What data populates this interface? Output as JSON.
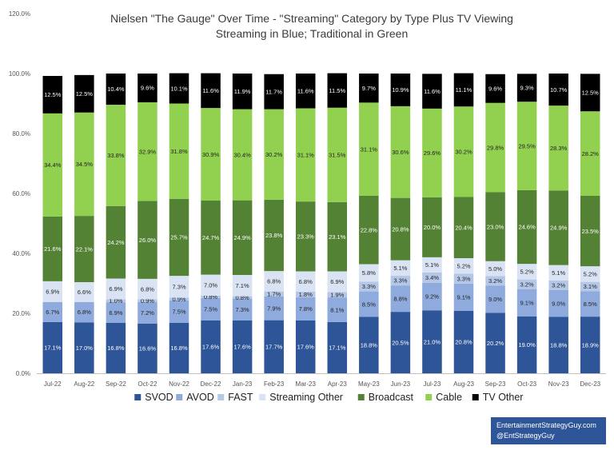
{
  "chart_data": {
    "type": "bar",
    "stacked": true,
    "title": "Nielsen \"The Gauge\" Over Time - \"Streaming\" Category by Type Plus TV Viewing",
    "subtitle": "Streaming in Blue; Traditional in Green",
    "categories": [
      "Jul-22",
      "Aug-22",
      "Sep-22",
      "Oct-22",
      "Nov-22",
      "Dec-22",
      "Jan-23",
      "Feb-23",
      "Mar-23",
      "Apr-23",
      "May-23",
      "Jun-23",
      "Jul-23",
      "Aug-23",
      "Sep-23",
      "Oct-23",
      "Nov-23",
      "Dec-23"
    ],
    "ylim": [
      0,
      120
    ],
    "yticks": [
      0,
      20,
      40,
      60,
      80,
      100,
      120
    ],
    "ytick_labels": [
      "0.0%",
      "20.0%",
      "40.0%",
      "60.0%",
      "80.0%",
      "100.0%",
      "120.0%"
    ],
    "grid": false,
    "legend_position": "bottom",
    "series": [
      {
        "name": "SVOD",
        "color": "#2e5597",
        "label_color": "#ffffff",
        "values": [
          17.1,
          17.0,
          16.8,
          16.6,
          16.8,
          17.6,
          17.6,
          17.7,
          17.6,
          17.1,
          18.8,
          20.5,
          21.0,
          20.8,
          20.2,
          19.0,
          18.8,
          18.9
        ],
        "labels": [
          "17.1%",
          "17.0%",
          "16.8%",
          "16.6%",
          "16.8%",
          "17.6%",
          "17.6%",
          "17.7%",
          "17.6%",
          "17.1%",
          "18.8%",
          "20.5%",
          "21.0%",
          "20.8%",
          "20.2%",
          "19.0%",
          "18.8%",
          "18.9%"
        ]
      },
      {
        "name": "AVOD",
        "color": "#8faadc",
        "label_color": "#1f1f1f",
        "values": [
          6.7,
          6.8,
          6.9,
          7.2,
          7.5,
          7.5,
          7.3,
          7.9,
          7.8,
          8.1,
          8.5,
          8.8,
          9.2,
          9.1,
          9.0,
          9.1,
          9.0,
          8.5
        ],
        "labels": [
          "6.7%",
          "6.8%",
          "6.9%",
          "7.2%",
          "7.5%",
          "7.5%",
          "7.3%",
          "7.9%",
          "7.8%",
          "8.1%",
          "8.5%",
          "8.8%",
          "9.2%",
          "9.1%",
          "9.0%",
          "9.1%",
          "9.0%",
          "8.5%"
        ]
      },
      {
        "name": "FAST",
        "color": "#b4c7e7",
        "label_color": "#1f1f1f",
        "values": [
          0,
          0,
          1.0,
          0.9,
          0.9,
          0.8,
          0.8,
          1.7,
          1.8,
          1.9,
          3.3,
          3.3,
          3.4,
          3.3,
          3.2,
          3.2,
          3.2,
          3.1
        ],
        "labels": [
          "",
          "",
          "1.0%",
          "0.9%",
          "0.9%",
          "0.8%",
          "0.8%",
          "1.7%",
          "1.8%",
          "1.9%",
          "3.3%",
          "3.3%",
          "3.4%",
          "3.3%",
          "3.2%",
          "3.2%",
          "3.2%",
          "3.1%"
        ]
      },
      {
        "name": "Streaming Other",
        "color": "#dae3f3",
        "label_color": "#1f1f1f",
        "values": [
          6.9,
          6.6,
          6.9,
          6.8,
          7.3,
          7.0,
          7.1,
          6.8,
          6.8,
          6.9,
          5.8,
          5.1,
          5.1,
          5.2,
          5.0,
          5.2,
          5.1,
          5.2
        ],
        "labels": [
          "6.9%",
          "6.6%",
          "6.9%",
          "6.8%",
          "7.3%",
          "7.0%",
          "7.1%",
          "6.8%",
          "6.8%",
          "6.9%",
          "5.8%",
          "5.1%",
          "5.1%",
          "5.2%",
          "5.0%",
          "5.2%",
          "5.1%",
          "5.2%"
        ]
      },
      {
        "name": "Broadcast",
        "color": "#548235",
        "label_color": "#ffffff",
        "values": [
          21.6,
          22.1,
          24.2,
          26.0,
          25.7,
          24.7,
          24.9,
          23.8,
          23.3,
          23.1,
          22.8,
          20.8,
          20.0,
          20.4,
          23.0,
          24.6,
          24.9,
          23.5
        ],
        "labels": [
          "21.6%",
          "22.1%",
          "24.2%",
          "26.0%",
          "25.7%",
          "24.7%",
          "24.9%",
          "23.8%",
          "23.3%",
          "23.1%",
          "22.8%",
          "20.8%",
          "20.0%",
          "20.4%",
          "23.0%",
          "24.6%",
          "24.9%",
          "23.5%"
        ]
      },
      {
        "name": "Cable",
        "color": "#92d050",
        "label_color": "#1f1f1f",
        "values": [
          34.4,
          34.5,
          33.8,
          32.9,
          31.8,
          30.9,
          30.4,
          30.2,
          31.1,
          31.5,
          31.1,
          30.6,
          29.6,
          30.2,
          29.8,
          29.5,
          28.3,
          28.2
        ],
        "labels": [
          "34.4%",
          "34.5%",
          "33.8%",
          "32.9%",
          "31.8%",
          "30.9%",
          "30.4%",
          "30.2%",
          "31.1%",
          "31.5%",
          "31.1%",
          "30.6%",
          "29.6%",
          "30.2%",
          "29.8%",
          "29.5%",
          "28.3%",
          "28.2%"
        ]
      },
      {
        "name": "TV Other",
        "color": "#000000",
        "label_color": "#ffffff",
        "values": [
          12.5,
          12.5,
          10.4,
          9.6,
          10.1,
          11.6,
          11.9,
          11.7,
          11.6,
          11.5,
          9.7,
          10.9,
          11.6,
          11.1,
          9.6,
          9.3,
          10.7,
          12.5
        ],
        "labels": [
          "12.5%",
          "12.5%",
          "10.4%",
          "9.6%",
          "10.1%",
          "11.6%",
          "11.9%",
          "11.7%",
          "11.6%",
          "11.5%",
          "9.7%",
          "10.9%",
          "11.6%",
          "11.1%",
          "9.6%",
          "9.3%",
          "10.7%",
          "12.5%"
        ]
      }
    ]
  },
  "credit": {
    "line1": "EntertainmentStrategyGuy.com",
    "line2": "@EntStrategyGuy"
  }
}
